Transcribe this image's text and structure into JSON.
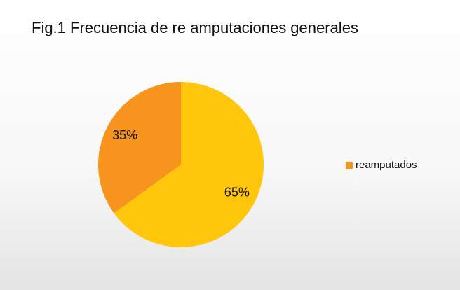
{
  "chart_data": {
    "type": "pie",
    "title": "Fig.1 Frecuencia  de re amputaciones  generales",
    "categories": [
      null,
      "reamputados"
    ],
    "values": [
      65,
      35
    ],
    "value_labels": [
      "65%",
      "35%"
    ],
    "colors": [
      "#FFC60B",
      "#F7941D"
    ],
    "legend": "right"
  }
}
